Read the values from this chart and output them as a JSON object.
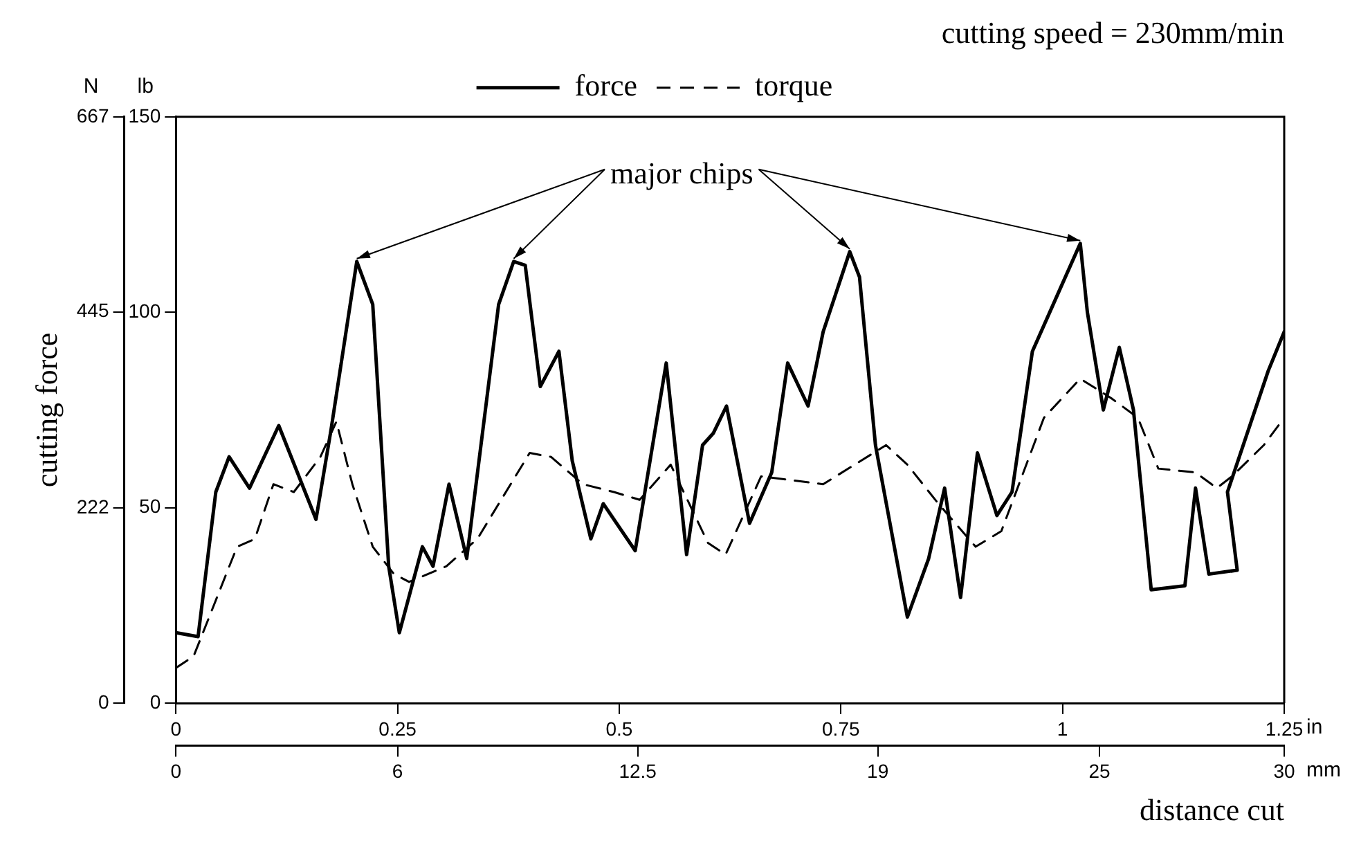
{
  "chart_data": {
    "type": "line",
    "title": "cutting speed = 230mm/min",
    "xlabel": "distance cut",
    "y2label": "cutting force",
    "xlim": [
      0,
      1.25
    ],
    "xticks": [
      0,
      0.25,
      0.5,
      0.75,
      1.0,
      1.25
    ],
    "x2lim": [
      0,
      30
    ],
    "x2ticks": [
      0,
      6,
      12.5,
      19,
      25,
      30
    ],
    "ylim": [
      0,
      150
    ],
    "yticks": [
      0,
      50,
      100,
      150
    ],
    "y2lim": [
      0,
      667
    ],
    "y2ticks": [
      0,
      222,
      445,
      667
    ],
    "annotations": [
      {
        "text": "major chips",
        "x": 1.02,
        "y": 117.6
      },
      "lb",
      "N",
      "in",
      "mm"
    ],
    "legend": "top",
    "grid": false,
    "marker": "none",
    "series": [
      {
        "name": "force",
        "color": "#000000",
        "line_style": "solid",
        "x": [
          0,
          0.025,
          0.045,
          0.06,
          0.083,
          0.116,
          0.158,
          0.175,
          0.204,
          0.222,
          0.24,
          0.252,
          0.278,
          0.29,
          0.308,
          0.328,
          0.364,
          0.381,
          0.394,
          0.411,
          0.432,
          0.447,
          0.468,
          0.482,
          0.518,
          0.553,
          0.576,
          0.594,
          0.606,
          0.621,
          0.647,
          0.672,
          0.69,
          0.713,
          0.73,
          0.76,
          0.771,
          0.789,
          0.825,
          0.849,
          0.867,
          0.885,
          0.904,
          0.926,
          0.943,
          0.966,
          1.02,
          1.028,
          1.046,
          1.064,
          1.08,
          1.1,
          1.138,
          1.15,
          1.165,
          1.197,
          1.186,
          1.232,
          1.25
        ],
        "values": [
          18,
          17,
          54,
          63,
          55,
          71,
          47,
          70,
          113,
          102,
          35,
          18,
          40,
          35,
          56,
          37,
          102,
          113,
          112,
          81,
          90,
          62,
          42,
          51,
          39,
          87,
          38,
          66,
          69,
          76,
          46,
          59,
          87,
          76,
          95,
          115.5,
          109,
          66,
          22,
          37,
          55,
          27,
          64,
          48,
          54,
          90,
          117.6,
          100,
          75,
          91,
          75,
          29,
          30,
          55,
          33,
          34,
          54,
          85,
          95
        ]
      },
      {
        "name": "torque",
        "color": "#000000",
        "line_style": "dashed",
        "x": [
          0,
          0.02,
          0.069,
          0.089,
          0.11,
          0.133,
          0.163,
          0.181,
          0.199,
          0.222,
          0.246,
          0.263,
          0.305,
          0.34,
          0.399,
          0.423,
          0.459,
          0.494,
          0.523,
          0.558,
          0.6,
          0.62,
          0.66,
          0.73,
          0.801,
          0.825,
          0.86,
          0.902,
          0.931,
          0.979,
          1.02,
          1.055,
          1.085,
          1.108,
          1.15,
          1.174,
          1.191,
          1.227,
          1.25
        ],
        "values": [
          9,
          12,
          40,
          42,
          56,
          54,
          63,
          72,
          56,
          40,
          33,
          31,
          35,
          42,
          64,
          63,
          56,
          54,
          52,
          61,
          41,
          38,
          58,
          56,
          66,
          61,
          51,
          40,
          44,
          73,
          83,
          78,
          73,
          60,
          59,
          55,
          58,
          66,
          73
        ]
      }
    ]
  }
}
